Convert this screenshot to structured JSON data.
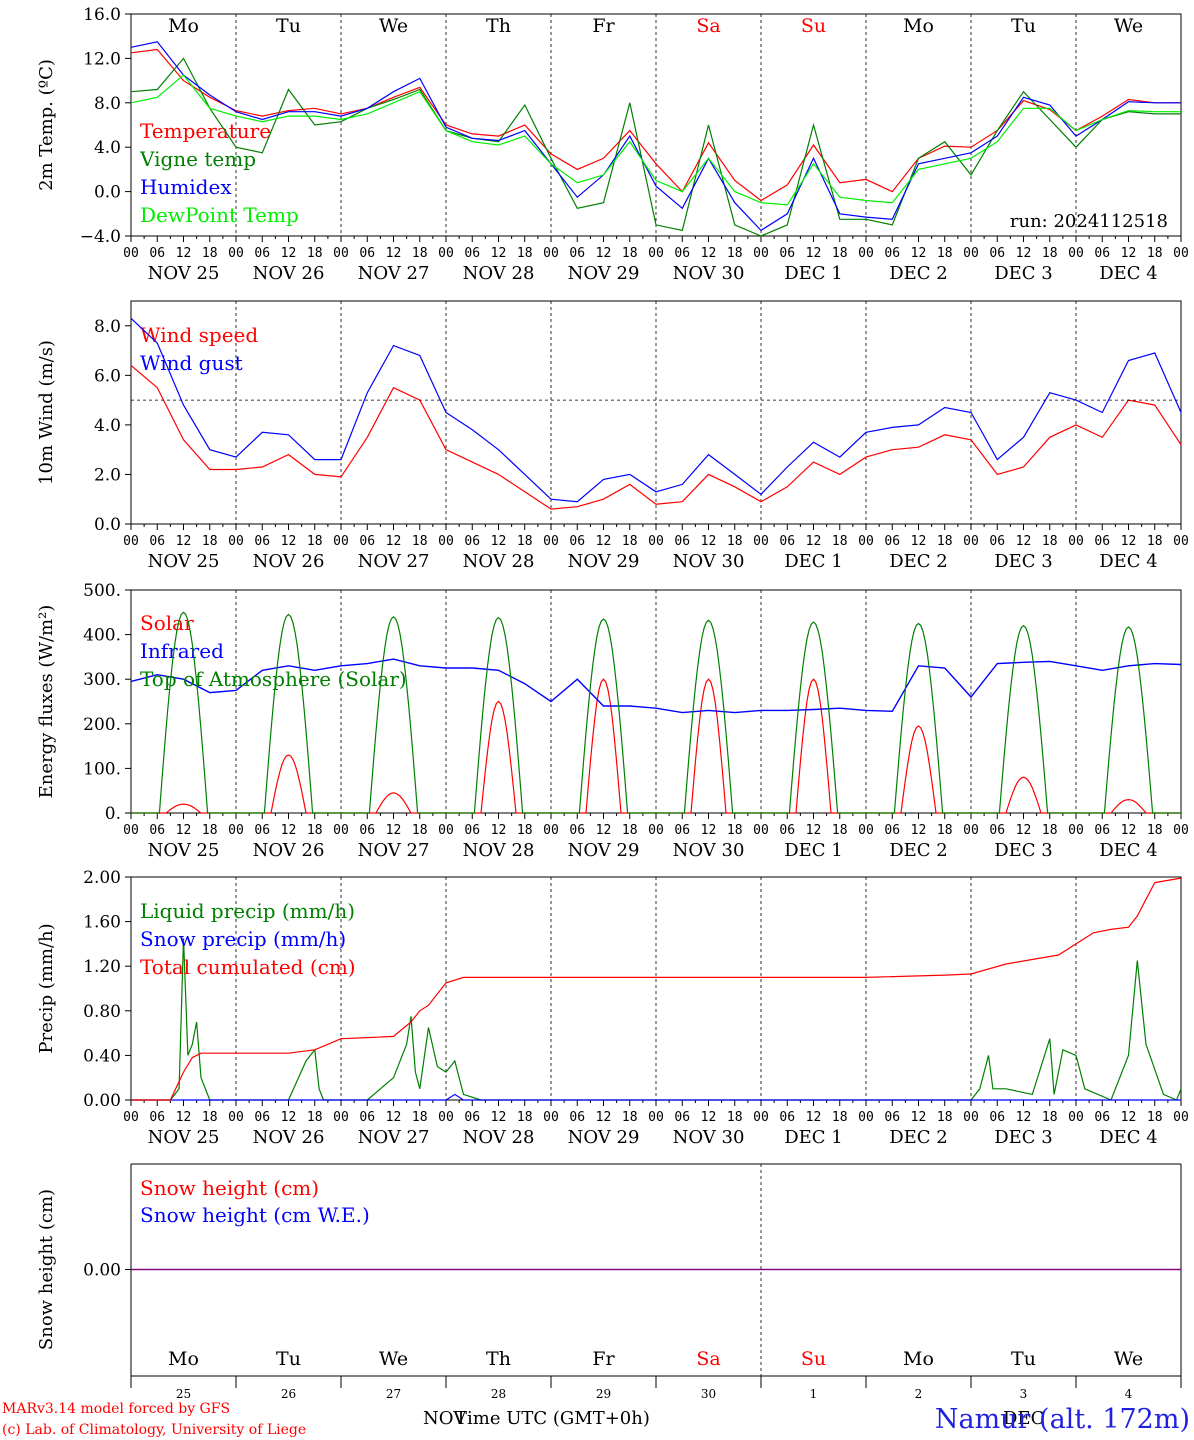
{
  "run_label": "run: 2024112518",
  "footer": {
    "model": "MARv3.14 model forced by GFS",
    "credit": "(c) Lab. of Climatology, University of Liege",
    "xlabel": "Time UTC (GMT+0h)",
    "nov": "NOV",
    "dec": "DEC",
    "station": "Namur (alt. 172m)"
  },
  "colors": {
    "red": "#ff0000",
    "green": "#008000",
    "blue": "#0000ff",
    "lime": "#00ee00",
    "axis": "#000000",
    "purple": "#800080"
  },
  "days": {
    "names": [
      "Mo",
      "Tu",
      "We",
      "Th",
      "Fr",
      "Sa",
      "Su",
      "Mo",
      "Tu",
      "We"
    ],
    "weekend_index": [
      5,
      6
    ],
    "date_labels": [
      "NOV 25",
      "NOV 26",
      "NOV 27",
      "NOV 28",
      "NOV 29",
      "NOV 30",
      "DEC  1",
      "DEC  2",
      "DEC  3",
      "DEC  4"
    ],
    "day_numbers": [
      "25",
      "26",
      "27",
      "28",
      "29",
      "30",
      "1",
      "2",
      "3",
      "4"
    ],
    "hour_ticks": [
      "00",
      "06",
      "12",
      "18"
    ]
  },
  "chart_data": [
    {
      "type": "line",
      "ylabel": "2m Temp. (ºC)",
      "ylim": [
        -4,
        16
      ],
      "yticks": [
        "16.0",
        "12.0",
        "8.0",
        "4.0",
        "0.0",
        "−4.0"
      ],
      "yvals": [
        16,
        12,
        8,
        4,
        0,
        -4
      ],
      "x_unit": "hours from NOV 25 00 UTC",
      "series": [
        {
          "name": "Temperature",
          "color": "red",
          "x": [
            0,
            6,
            12,
            18,
            24,
            30,
            36,
            42,
            48,
            54,
            60,
            66,
            72,
            78,
            84,
            90,
            96,
            102,
            108,
            114,
            120,
            126,
            132,
            138,
            144,
            150,
            156,
            162,
            168,
            174,
            180,
            186,
            192,
            198,
            204,
            210,
            216,
            222,
            228,
            234,
            240
          ],
          "y": [
            12.5,
            12.8,
            10.0,
            8.5,
            7.3,
            6.8,
            7.3,
            7.5,
            7.0,
            7.5,
            8.5,
            9.4,
            6.0,
            5.2,
            5.0,
            6.0,
            3.4,
            2.0,
            3.0,
            5.5,
            2.5,
            0.0,
            4.4,
            1.0,
            -0.8,
            0.6,
            4.2,
            0.8,
            1.1,
            0.0,
            3.0,
            4.1,
            4.0,
            5.5,
            8.2,
            7.4,
            5.5,
            6.8,
            8.3,
            8.0,
            8.0
          ]
        },
        {
          "name": "Vigne temp",
          "color": "green",
          "x": [
            0,
            6,
            12,
            18,
            24,
            30,
            36,
            42,
            48,
            54,
            60,
            66,
            72,
            78,
            84,
            90,
            96,
            102,
            108,
            114,
            120,
            126,
            132,
            138,
            144,
            150,
            156,
            162,
            168,
            174,
            180,
            186,
            192,
            198,
            204,
            210,
            216,
            222,
            228,
            234,
            240
          ],
          "y": [
            9.0,
            9.2,
            12.0,
            7.5,
            4.0,
            3.5,
            9.2,
            6.0,
            6.3,
            7.5,
            8.3,
            9.2,
            5.5,
            4.8,
            4.5,
            7.8,
            3.0,
            -1.5,
            -1.0,
            8.0,
            -3.0,
            -3.5,
            6.0,
            -3.0,
            -4.0,
            -3.0,
            6.0,
            -2.5,
            -2.5,
            -3.0,
            3.0,
            4.5,
            1.5,
            5.5,
            9.0,
            6.5,
            4.0,
            6.5,
            7.2,
            7.0,
            7.0
          ]
        },
        {
          "name": "Humidex",
          "color": "blue",
          "x": [
            0,
            6,
            12,
            18,
            24,
            30,
            36,
            42,
            48,
            54,
            60,
            66,
            72,
            78,
            84,
            90,
            96,
            102,
            108,
            114,
            120,
            126,
            132,
            138,
            144,
            150,
            156,
            162,
            168,
            174,
            180,
            186,
            192,
            198,
            204,
            210,
            216,
            222,
            228,
            234,
            240
          ],
          "y": [
            13.0,
            13.5,
            10.5,
            8.7,
            7.2,
            6.5,
            7.2,
            7.2,
            6.8,
            7.5,
            9.0,
            10.2,
            5.8,
            4.8,
            4.6,
            5.5,
            2.5,
            -0.5,
            1.5,
            5.0,
            0.5,
            -1.5,
            3.0,
            -1.0,
            -3.5,
            -2.0,
            3.0,
            -2.0,
            -2.3,
            -2.5,
            2.5,
            3.0,
            3.5,
            5.0,
            8.5,
            7.8,
            5.0,
            6.5,
            8.1,
            8.0,
            8.0
          ]
        },
        {
          "name": "DewPoint Temp",
          "color": "lime",
          "x": [
            0,
            6,
            12,
            18,
            24,
            30,
            36,
            42,
            48,
            54,
            60,
            66,
            72,
            78,
            84,
            90,
            96,
            102,
            108,
            114,
            120,
            126,
            132,
            138,
            144,
            150,
            156,
            162,
            168,
            174,
            180,
            186,
            192,
            198,
            204,
            210,
            216,
            222,
            228,
            234,
            240
          ],
          "y": [
            8.0,
            8.5,
            10.5,
            7.5,
            6.8,
            6.3,
            6.8,
            6.8,
            6.5,
            7.0,
            8.0,
            9.0,
            5.5,
            4.5,
            4.2,
            5.0,
            2.5,
            0.8,
            1.5,
            4.5,
            1.0,
            0.0,
            3.0,
            0.0,
            -1.0,
            -1.2,
            2.5,
            -0.5,
            -0.8,
            -1.0,
            2.0,
            2.5,
            3.0,
            4.5,
            7.5,
            7.5,
            5.5,
            6.5,
            7.3,
            7.2,
            7.2
          ]
        }
      ]
    },
    {
      "type": "line",
      "ylabel": "10m Wind (m/s)",
      "ylim": [
        0,
        9
      ],
      "yticks": [
        "8.0",
        "6.0",
        "4.0",
        "2.0",
        "0.0"
      ],
      "yvals": [
        8,
        6,
        4,
        2,
        0
      ],
      "reference_line": 5,
      "series": [
        {
          "name": "Wind speed",
          "color": "red",
          "x": [
            0,
            6,
            12,
            18,
            24,
            30,
            36,
            42,
            48,
            54,
            60,
            66,
            72,
            78,
            84,
            90,
            96,
            102,
            108,
            114,
            120,
            126,
            132,
            138,
            144,
            150,
            156,
            162,
            168,
            174,
            180,
            186,
            192,
            198,
            204,
            210,
            216,
            222,
            228,
            234,
            240
          ],
          "y": [
            6.4,
            5.5,
            3.4,
            2.2,
            2.2,
            2.3,
            2.8,
            2.0,
            1.9,
            3.5,
            5.5,
            5.0,
            3.0,
            2.5,
            2.0,
            1.3,
            0.6,
            0.7,
            1.0,
            1.6,
            0.8,
            0.9,
            2.0,
            1.5,
            0.9,
            1.5,
            2.5,
            2.0,
            2.7,
            3.0,
            3.1,
            3.6,
            3.4,
            2.0,
            2.3,
            3.5,
            4.0,
            3.5,
            5.0,
            4.8,
            3.2
          ]
        },
        {
          "name": "Wind gust",
          "color": "blue",
          "x": [
            0,
            6,
            12,
            18,
            24,
            30,
            36,
            42,
            48,
            54,
            60,
            66,
            72,
            78,
            84,
            90,
            96,
            102,
            108,
            114,
            120,
            126,
            132,
            138,
            144,
            150,
            156,
            162,
            168,
            174,
            180,
            186,
            192,
            198,
            204,
            210,
            216,
            222,
            228,
            234,
            240
          ],
          "y": [
            8.3,
            7.3,
            4.8,
            3.0,
            2.7,
            3.7,
            3.6,
            2.6,
            2.6,
            5.3,
            7.2,
            6.8,
            4.5,
            3.8,
            3.0,
            2.0,
            1.0,
            0.9,
            1.8,
            2.0,
            1.3,
            1.6,
            2.8,
            2.0,
            1.2,
            2.3,
            3.3,
            2.7,
            3.7,
            3.9,
            4.0,
            4.7,
            4.5,
            2.6,
            3.5,
            5.3,
            5.0,
            4.5,
            6.6,
            6.9,
            4.5
          ]
        }
      ]
    },
    {
      "type": "line",
      "ylabel": "Energy fluxes (W/m²)",
      "ylim": [
        0,
        500
      ],
      "yticks": [
        "500.",
        "400.",
        "300.",
        "200.",
        "100.",
        "0."
      ],
      "yvals": [
        500,
        400,
        300,
        200,
        100,
        0
      ],
      "series": [
        {
          "name": "Solar",
          "color": "red",
          "peaks": [
            20,
            130,
            45,
            250,
            300,
            300,
            300,
            195,
            80,
            30
          ]
        },
        {
          "name": "Infrared",
          "color": "blue",
          "x": [
            0,
            6,
            12,
            18,
            24,
            30,
            36,
            42,
            48,
            54,
            60,
            66,
            72,
            78,
            84,
            90,
            96,
            102,
            108,
            114,
            120,
            126,
            132,
            138,
            144,
            150,
            156,
            162,
            168,
            174,
            180,
            186,
            192,
            198,
            204,
            210,
            216,
            222,
            228,
            234,
            240
          ],
          "y": [
            295,
            310,
            300,
            270,
            275,
            320,
            330,
            320,
            330,
            335,
            345,
            330,
            325,
            325,
            320,
            290,
            250,
            300,
            240,
            240,
            235,
            225,
            230,
            225,
            230,
            230,
            232,
            235,
            230,
            228,
            330,
            325,
            260,
            335,
            338,
            340,
            330,
            320,
            330,
            335,
            333
          ]
        },
        {
          "name": "Top of Atmosphere (Solar)",
          "color": "green",
          "peaks": [
            450,
            445,
            440,
            438,
            435,
            432,
            428,
            425,
            420,
            417
          ]
        }
      ]
    },
    {
      "type": "line",
      "ylabel": "Precip (mm/h)",
      "ylim": [
        0,
        2
      ],
      "yticks": [
        "2.00",
        "1.60",
        "1.20",
        "0.80",
        "0.40",
        "0.00"
      ],
      "yvals": [
        2,
        1.6,
        1.2,
        0.8,
        0.4,
        0
      ],
      "series": [
        {
          "name": "Liquid precip (mm/h)",
          "color": "green",
          "x": [
            0,
            9,
            11,
            12,
            13,
            14,
            15,
            16,
            18,
            24,
            36,
            40,
            42,
            43,
            44,
            48,
            54,
            60,
            63,
            64,
            65,
            66,
            68,
            70,
            72,
            74,
            76,
            80,
            96,
            192,
            194,
            196,
            197,
            200,
            206,
            210,
            211,
            213,
            216,
            218,
            224,
            228,
            230,
            232,
            236,
            239,
            240
          ],
          "y": [
            0,
            0,
            0.1,
            1.45,
            0.4,
            0.5,
            0.7,
            0.2,
            0,
            0,
            0,
            0.35,
            0.45,
            0.1,
            0,
            0,
            0,
            0.2,
            0.5,
            0.75,
            0.25,
            0.1,
            0.65,
            0.3,
            0.25,
            0.35,
            0.05,
            0,
            0,
            0,
            0.1,
            0.4,
            0.1,
            0.1,
            0.05,
            0.55,
            0.05,
            0.45,
            0.4,
            0.1,
            0,
            0.4,
            1.25,
            0.5,
            0.05,
            0,
            0.1
          ]
        },
        {
          "name": "Snow precip (mm/h)",
          "color": "blue",
          "x": [
            0,
            72,
            74,
            76,
            240
          ],
          "y": [
            0,
            0,
            0.05,
            0,
            0
          ]
        },
        {
          "name": "Total cumulated (cm)",
          "color": "red",
          "x": [
            0,
            9,
            12,
            14,
            16,
            24,
            36,
            42,
            48,
            54,
            60,
            64,
            66,
            68,
            72,
            76,
            84,
            96,
            120,
            144,
            168,
            186,
            192,
            200,
            212,
            216,
            220,
            224,
            228,
            230,
            232,
            234,
            240
          ],
          "y": [
            0,
            0,
            0.25,
            0.38,
            0.42,
            0.42,
            0.42,
            0.45,
            0.55,
            0.56,
            0.57,
            0.7,
            0.8,
            0.85,
            1.05,
            1.1,
            1.1,
            1.1,
            1.1,
            1.1,
            1.1,
            1.12,
            1.13,
            1.22,
            1.3,
            1.4,
            1.5,
            1.53,
            1.55,
            1.65,
            1.8,
            1.95,
            1.99
          ]
        }
      ]
    },
    {
      "type": "line",
      "ylabel": "Snow height (cm)",
      "yticks": [
        "0.00"
      ],
      "yvals": [
        0
      ],
      "ylim": [
        -1,
        1
      ],
      "series": [
        {
          "name": "Snow height (cm)",
          "color": "red",
          "x": [
            0,
            240
          ],
          "y": [
            0,
            0
          ]
        },
        {
          "name": "Snow height (cm W.E.)",
          "color": "blue",
          "x": [
            0,
            240
          ],
          "y": [
            0,
            0
          ]
        }
      ]
    }
  ]
}
